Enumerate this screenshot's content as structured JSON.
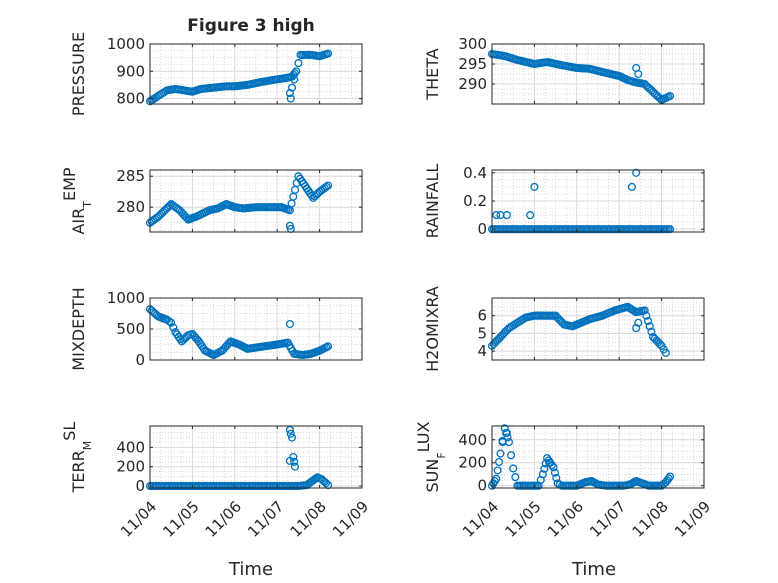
{
  "figure": {
    "title": "Figure 3 high",
    "marker_color": "#0072BD",
    "grid": true,
    "x_tick_labels": [
      "11/04",
      "11/05",
      "11/06",
      "11/07",
      "11/08",
      "11/09"
    ],
    "x_label": "Time"
  },
  "chart_data": [
    {
      "type": "scatter",
      "title": "Figure 3 high",
      "ylabel": "PRESSURE",
      "ylabel_main": "PRESSURE",
      "ylabel_sub": "",
      "ylabel_tail": "",
      "ylim": [
        780,
        1000
      ],
      "yticks": [
        800,
        900,
        1000
      ],
      "xlim": [
        "11/04",
        "11/09"
      ],
      "anchors": [
        [
          0.0,
          790
        ],
        [
          0.15,
          805
        ],
        [
          0.4,
          830
        ],
        [
          0.6,
          835
        ],
        [
          0.8,
          830
        ],
        [
          1.0,
          825
        ],
        [
          1.2,
          835
        ],
        [
          1.5,
          840
        ],
        [
          1.8,
          845
        ],
        [
          2.0,
          845
        ],
        [
          2.3,
          850
        ],
        [
          2.6,
          860
        ],
        [
          2.9,
          868
        ],
        [
          3.2,
          875
        ],
        [
          3.35,
          880
        ],
        [
          3.45,
          900
        ],
        [
          3.55,
          960
        ],
        [
          3.8,
          960
        ],
        [
          4.0,
          955
        ],
        [
          4.2,
          965
        ]
      ],
      "extra_points": [
        [
          3.3,
          820
        ],
        [
          3.32,
          800
        ],
        [
          3.35,
          840
        ],
        [
          3.4,
          870
        ]
      ]
    },
    {
      "type": "scatter",
      "ylabel": "THETA",
      "ylabel_main": "THETA",
      "ylabel_sub": "",
      "ylabel_tail": "",
      "ylim": [
        285,
        300
      ],
      "yticks": [
        290,
        295,
        300
      ],
      "xlim": [
        "11/04",
        "11/09"
      ],
      "anchors": [
        [
          0.0,
          297.5
        ],
        [
          0.3,
          297
        ],
        [
          0.6,
          296
        ],
        [
          1.0,
          295
        ],
        [
          1.3,
          295.5
        ],
        [
          1.6,
          294.8
        ],
        [
          2.0,
          294
        ],
        [
          2.3,
          293.8
        ],
        [
          2.6,
          293
        ],
        [
          3.0,
          292
        ],
        [
          3.2,
          291
        ],
        [
          3.35,
          290.5
        ],
        [
          3.6,
          290
        ],
        [
          3.8,
          288
        ],
        [
          4.0,
          286
        ],
        [
          4.2,
          287
        ]
      ],
      "extra_points": [
        [
          3.4,
          294
        ],
        [
          3.45,
          292.5
        ]
      ]
    },
    {
      "type": "scatter",
      "ylabel": "AIR_TEMP",
      "ylabel_main": "AIR",
      "ylabel_sub": "T",
      "ylabel_tail": "EMP",
      "ylim": [
        276,
        286
      ],
      "yticks": [
        280,
        285
      ],
      "xlim": [
        "11/04",
        "11/09"
      ],
      "anchors": [
        [
          0.0,
          277.5
        ],
        [
          0.2,
          278.5
        ],
        [
          0.5,
          280.5
        ],
        [
          0.7,
          279.5
        ],
        [
          0.9,
          278
        ],
        [
          1.1,
          278.5
        ],
        [
          1.4,
          279.5
        ],
        [
          1.6,
          279.8
        ],
        [
          1.8,
          280.5
        ],
        [
          2.0,
          280
        ],
        [
          2.2,
          279.8
        ],
        [
          2.5,
          280
        ],
        [
          2.8,
          280
        ],
        [
          3.1,
          280
        ],
        [
          3.3,
          279.5
        ],
        [
          3.5,
          285
        ],
        [
          3.7,
          283
        ],
        [
          3.85,
          281.5
        ],
        [
          4.0,
          282.5
        ],
        [
          4.2,
          283.5
        ]
      ],
      "extra_points": [
        [
          3.3,
          277
        ],
        [
          3.32,
          276.5
        ]
      ]
    },
    {
      "type": "scatter",
      "ylabel": "RAINFALL",
      "ylabel_main": "RAINFALL",
      "ylabel_sub": "",
      "ylabel_tail": "",
      "ylim": [
        -0.02,
        0.42
      ],
      "yticks": [
        0,
        0.2,
        0.4
      ],
      "xlim": [
        "11/04",
        "11/09"
      ],
      "anchors": [
        [
          0.0,
          0
        ],
        [
          4.2,
          0
        ]
      ],
      "extra_points": [
        [
          0.1,
          0.1
        ],
        [
          0.2,
          0.1
        ],
        [
          0.35,
          0.1
        ],
        [
          0.9,
          0.1
        ],
        [
          1.0,
          0.3
        ],
        [
          3.3,
          0.3
        ],
        [
          3.4,
          0.4
        ]
      ]
    },
    {
      "type": "scatter",
      "ylabel": "MIXDEPTH",
      "ylabel_main": "MIXDEPTH",
      "ylabel_sub": "",
      "ylabel_tail": "",
      "ylim": [
        0,
        1000
      ],
      "yticks": [
        0,
        500,
        1000
      ],
      "xlim": [
        "11/04",
        "11/09"
      ],
      "anchors": [
        [
          0.0,
          820
        ],
        [
          0.2,
          700
        ],
        [
          0.4,
          650
        ],
        [
          0.5,
          600
        ],
        [
          0.6,
          450
        ],
        [
          0.75,
          300
        ],
        [
          0.9,
          400
        ],
        [
          1.0,
          420
        ],
        [
          1.15,
          300
        ],
        [
          1.3,
          150
        ],
        [
          1.5,
          80
        ],
        [
          1.7,
          150
        ],
        [
          1.9,
          300
        ],
        [
          2.1,
          250
        ],
        [
          2.3,
          180
        ],
        [
          2.5,
          200
        ],
        [
          2.7,
          220
        ],
        [
          3.0,
          250
        ],
        [
          3.25,
          280
        ],
        [
          3.4,
          100
        ],
        [
          3.6,
          80
        ],
        [
          3.8,
          100
        ],
        [
          4.0,
          150
        ],
        [
          4.2,
          220
        ]
      ],
      "extra_points": [
        [
          3.3,
          580
        ]
      ]
    },
    {
      "type": "scatter",
      "ylabel": "H2OMIXRA",
      "ylabel_main": "H2OMIXRA",
      "ylabel_sub": "",
      "ylabel_tail": "",
      "ylim": [
        3.5,
        7
      ],
      "yticks": [
        4,
        5,
        6
      ],
      "xlim": [
        "11/04",
        "11/09"
      ],
      "anchors": [
        [
          0.0,
          4.3
        ],
        [
          0.2,
          4.8
        ],
        [
          0.4,
          5.3
        ],
        [
          0.6,
          5.6
        ],
        [
          0.8,
          5.9
        ],
        [
          1.0,
          6.0
        ],
        [
          1.3,
          6.0
        ],
        [
          1.5,
          6.0
        ],
        [
          1.7,
          5.5
        ],
        [
          1.9,
          5.4
        ],
        [
          2.1,
          5.6
        ],
        [
          2.3,
          5.8
        ],
        [
          2.6,
          6.0
        ],
        [
          2.9,
          6.3
        ],
        [
          3.2,
          6.5
        ],
        [
          3.4,
          6.2
        ],
        [
          3.6,
          6.3
        ],
        [
          3.8,
          4.8
        ],
        [
          4.0,
          4.3
        ],
        [
          4.1,
          3.9
        ]
      ],
      "extra_points": [
        [
          3.4,
          5.3
        ],
        [
          3.45,
          5.6
        ]
      ]
    },
    {
      "type": "scatter",
      "ylabel": "TERR_MSL",
      "ylabel_main": "TERR",
      "ylabel_sub": "M",
      "ylabel_tail": "SL",
      "ylim": [
        -20,
        620
      ],
      "yticks": [
        0,
        200,
        400
      ],
      "xlim": [
        "11/04",
        "11/09"
      ],
      "anchors": [
        [
          0.0,
          0
        ],
        [
          3.25,
          0
        ],
        [
          3.5,
          0
        ],
        [
          3.7,
          10
        ],
        [
          3.85,
          60
        ],
        [
          3.95,
          90
        ],
        [
          4.05,
          70
        ],
        [
          4.15,
          30
        ],
        [
          4.2,
          10
        ]
      ],
      "extra_points": [
        [
          3.3,
          580
        ],
        [
          3.32,
          540
        ],
        [
          3.35,
          500
        ],
        [
          3.38,
          300
        ],
        [
          3.4,
          250
        ],
        [
          3.42,
          200
        ],
        [
          3.3,
          260
        ]
      ]
    },
    {
      "type": "scatter",
      "ylabel": "SUN_FLUX",
      "ylabel_main": "SUN",
      "ylabel_sub": "F",
      "ylabel_tail": "LUX",
      "ylim": [
        -20,
        520
      ],
      "yticks": [
        0,
        200,
        400
      ],
      "xlim": [
        "11/04",
        "11/09"
      ],
      "anchors": [
        [
          0.0,
          0
        ],
        [
          0.1,
          60
        ],
        [
          0.2,
          280
        ],
        [
          0.3,
          500
        ],
        [
          0.4,
          380
        ],
        [
          0.5,
          150
        ],
        [
          0.6,
          0
        ],
        [
          1.1,
          0
        ],
        [
          1.2,
          100
        ],
        [
          1.3,
          240
        ],
        [
          1.45,
          160
        ],
        [
          1.55,
          20
        ],
        [
          1.65,
          0
        ],
        [
          2.0,
          0
        ],
        [
          2.2,
          30
        ],
        [
          2.35,
          40
        ],
        [
          2.5,
          10
        ],
        [
          2.7,
          0
        ],
        [
          3.1,
          0
        ],
        [
          3.25,
          10
        ],
        [
          3.4,
          40
        ],
        [
          3.55,
          20
        ],
        [
          3.7,
          0
        ],
        [
          4.0,
          0
        ],
        [
          4.1,
          30
        ],
        [
          4.2,
          80
        ]
      ],
      "extra_points": [
        [
          0.25,
          380
        ],
        [
          0.35,
          460
        ],
        [
          1.35,
          200
        ]
      ]
    }
  ]
}
